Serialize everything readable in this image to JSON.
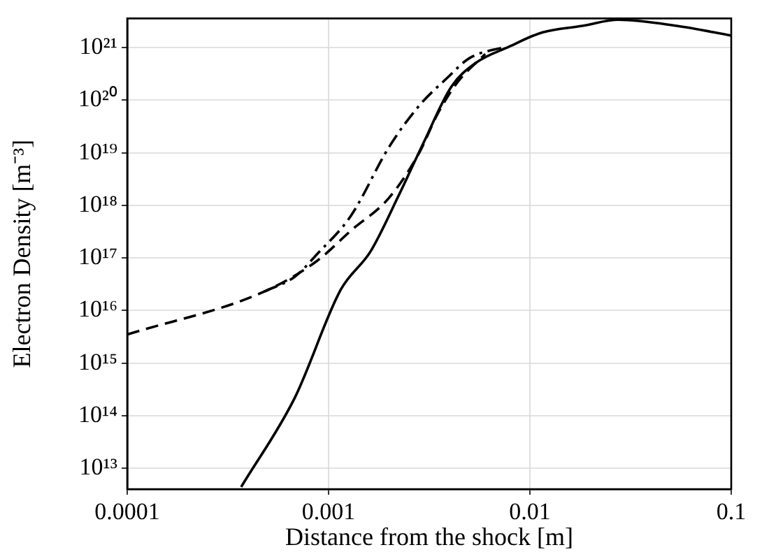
{
  "chart_data": {
    "type": "line",
    "xlabel": "Distance from the shock [m]",
    "ylabel": "Electron Density [m⁻³]",
    "log": "xy",
    "grid": true,
    "legend": false,
    "marker": "none",
    "xlim": [
      0.0001,
      0.1
    ],
    "xticks": [
      0.0001,
      0.001,
      0.01,
      0.1
    ],
    "ylim": [
      4000000000000.0,
      3.6e+21
    ],
    "yticks": [
      {
        "value": 10000000000000.0,
        "label": "10¹³"
      },
      {
        "value": 100000000000000.0,
        "label": "10¹⁴"
      },
      {
        "value": 1000000000000000.0,
        "label": "10¹⁵"
      },
      {
        "value": 1e+16,
        "label": "10¹⁶"
      },
      {
        "value": 1e+17,
        "label": "10¹⁷"
      },
      {
        "value": 1e+18,
        "label": "10¹⁸"
      },
      {
        "value": 1e+19,
        "label": "10¹⁹"
      },
      {
        "value": 1e+20,
        "label": "10²⁰"
      },
      {
        "value": 1e+21,
        "label": "10²¹"
      }
    ],
    "series": [
      {
        "color": "#000000",
        "line_style": "solid",
        "x": [
          0.000368,
          0.00068,
          0.00115,
          0.00162,
          0.00224,
          0.00295,
          0.00407,
          0.00537,
          0.0079,
          0.0115,
          0.0182,
          0.0275,
          0.0537,
          0.1
        ],
        "values": [
          4400000000000.0,
          220000000000000.0,
          2.5e+16,
          1.35e+17,
          1.6e+18,
          1.5e+19,
          1.8e+20,
          5.1e+20,
          1.05e+21,
          1.95e+21,
          2.6e+21,
          3.4e+21,
          2.6e+21,
          1.7e+21
        ]
      },
      {
        "color": "#000000",
        "line_style": "dashed",
        "x": [
          0.0001,
          0.00048,
          0.00088,
          0.00129,
          0.002,
          0.00282,
          0.00347,
          0.00437,
          0.006
        ],
        "values": [
          3500000000000000.0,
          2.3e+16,
          8.9e+16,
          3.3e+17,
          1.4e+18,
          1e+19,
          5.4e+19,
          2.2e+20,
          7.6e+20
        ]
      },
      {
        "color": "#000000",
        "line_style": "dashdot",
        "x": [
          0.00048,
          0.00068,
          0.00088,
          0.00129,
          0.002,
          0.00282,
          0.0039,
          0.005,
          0.0076
        ],
        "values": [
          2.3e+16,
          4.4e+16,
          1.2e+17,
          6.3e+17,
          1.3e+19,
          7.9e+19,
          2.7e+20,
          6.3e+20,
          1.05e+21
        ]
      }
    ]
  }
}
